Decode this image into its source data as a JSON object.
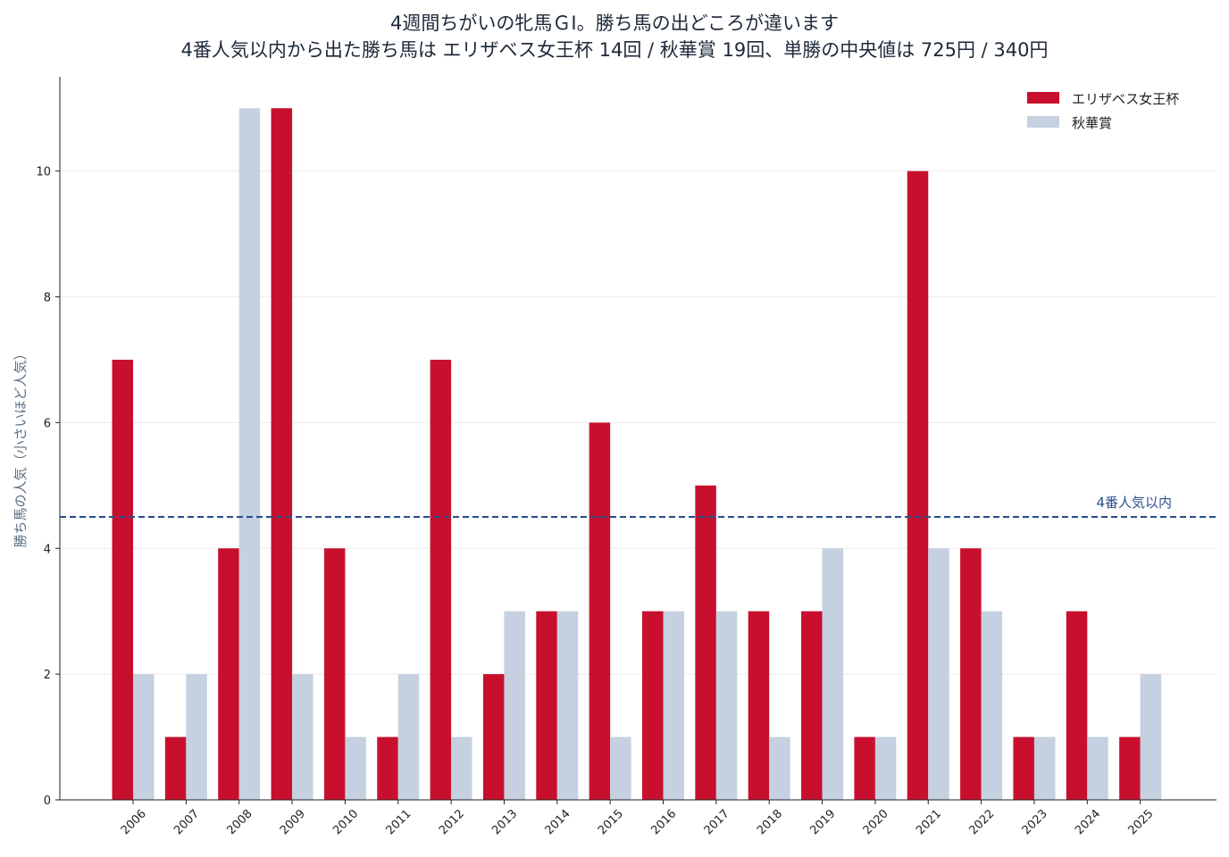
{
  "title_line1": "4週間ちがいの牝馬ＧⅠ。勝ち馬の出どころが違います",
  "title_line2": "4番人気以内から出た勝ち馬は エリザベス女王杯 14回 / 秋華賞 19回、単勝の中央値は 725円 / 340円",
  "chart_data": {
    "type": "bar",
    "categories": [
      "2006",
      "2007",
      "2008",
      "2009",
      "2010",
      "2011",
      "2012",
      "2013",
      "2014",
      "2015",
      "2016",
      "2017",
      "2018",
      "2019",
      "2020",
      "2021",
      "2022",
      "2023",
      "2024",
      "2025"
    ],
    "series": [
      {
        "name": "エリザベス女王杯",
        "color": "#c8102e",
        "values": [
          7,
          1,
          4,
          11,
          4,
          1,
          7,
          2,
          3,
          6,
          3,
          5,
          3,
          3,
          1,
          10,
          4,
          1,
          3,
          1
        ]
      },
      {
        "name": "秋華賞",
        "color": "#c5d1e0",
        "values": [
          2,
          2,
          11,
          2,
          1,
          2,
          1,
          3,
          3,
          1,
          3,
          3,
          1,
          4,
          1,
          4,
          3,
          1,
          1,
          2
        ]
      }
    ],
    "ylabel": "勝ち馬の人気（小さいほど人気）",
    "xlabel": "",
    "ylim": [
      0,
      11.5
    ],
    "yticks": [
      0,
      2,
      4,
      6,
      8,
      10
    ],
    "reference_line": {
      "value": 4.5,
      "label": "4番人気以内",
      "color": "#2c4f8a",
      "style": "dashed"
    },
    "legend_position": "top-right",
    "grid": "horizontal-light"
  }
}
